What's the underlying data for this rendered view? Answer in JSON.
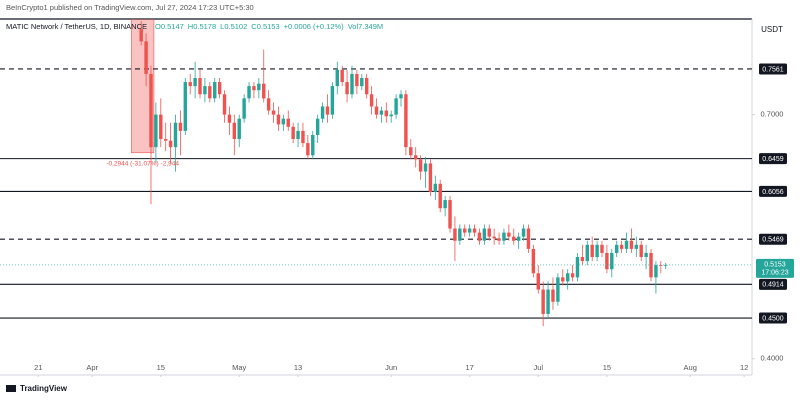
{
  "header": {
    "published": "BeInCrypto1 published on TradingView.com, Jul 27, 2024 17:23 UTC+5:30",
    "symbol": "MATIC Network / TetherUS, 1D, BINANCE",
    "ohlc": [
      "O0.5147",
      "H0.5178",
      "L0.5102",
      "C0.5153",
      "+0.0006 (+0.12%)",
      "Vol7.349M"
    ]
  },
  "footer": {
    "brand": "TradingView"
  },
  "chart_data": {
    "type": "candlestick",
    "currency": "USDT",
    "up_color": "#26a69a",
    "down_color": "#ef5350",
    "grid": false,
    "xlim": [
      73.2,
      226.6
    ],
    "ylim": [
      0.38,
      0.8175
    ],
    "xticks": [
      {
        "value": 81,
        "label": "21"
      },
      {
        "value": 92,
        "label": "Apr"
      },
      {
        "value": 106,
        "label": "15"
      },
      {
        "value": 122,
        "label": "May"
      },
      {
        "value": 134,
        "label": "13"
      },
      {
        "value": 153,
        "label": "Jun"
      },
      {
        "value": 169,
        "label": "17"
      },
      {
        "value": 183,
        "label": "Jul"
      },
      {
        "value": 197,
        "label": "15"
      },
      {
        "value": 214,
        "label": "Aug"
      },
      {
        "value": 225,
        "label": "12"
      }
    ],
    "yticks": [
      {
        "value": 0.7,
        "label": "0.7000"
      },
      {
        "value": 0.4,
        "label": "0.4000"
      }
    ],
    "x": [
      102,
      103,
      104,
      105,
      106,
      107,
      108,
      109,
      110,
      111,
      112,
      113,
      114,
      115,
      116,
      117,
      118,
      119,
      120,
      121,
      122,
      123,
      124,
      125,
      126,
      127,
      128,
      129,
      130,
      131,
      132,
      133,
      134,
      135,
      136,
      137,
      138,
      139,
      140,
      141,
      142,
      143,
      144,
      145,
      146,
      147,
      148,
      149,
      150,
      151,
      152,
      153,
      154,
      155,
      156,
      157,
      158,
      159,
      160,
      161,
      162,
      163,
      164,
      165,
      166,
      167,
      168,
      169,
      170,
      171,
      172,
      173,
      174,
      175,
      176,
      177,
      178,
      179,
      180,
      181,
      182,
      183,
      184,
      185,
      186,
      187,
      188,
      189,
      190,
      191,
      192,
      193,
      194,
      195,
      196,
      197,
      198,
      199,
      200,
      201,
      202,
      203,
      204,
      205,
      206,
      207,
      208,
      209
    ],
    "open": [
      0.805,
      0.79,
      0.75,
      0.66,
      0.7,
      0.67,
      0.668,
      0.66,
      0.69,
      0.68,
      0.74,
      0.735,
      0.745,
      0.725,
      0.735,
      0.72,
      0.74,
      0.725,
      0.7,
      0.69,
      0.67,
      0.695,
      0.72,
      0.735,
      0.73,
      0.738,
      0.72,
      0.705,
      0.7,
      0.688,
      0.695,
      0.685,
      0.67,
      0.68,
      0.665,
      0.65,
      0.675,
      0.695,
      0.71,
      0.7,
      0.735,
      0.755,
      0.74,
      0.725,
      0.75,
      0.735,
      0.745,
      0.725,
      0.71,
      0.7,
      0.705,
      0.698,
      0.7,
      0.72,
      0.725,
      0.66,
      0.65,
      0.645,
      0.63,
      0.64,
      0.605,
      0.615,
      0.585,
      0.595,
      0.56,
      0.545,
      0.56,
      0.555,
      0.56,
      0.555,
      0.545,
      0.56,
      0.55,
      0.548,
      0.545,
      0.555,
      0.55,
      0.545,
      0.55,
      0.56,
      0.535,
      0.505,
      0.485,
      0.455,
      0.485,
      0.47,
      0.5,
      0.495,
      0.505,
      0.5,
      0.525,
      0.52,
      0.54,
      0.525,
      0.54,
      0.53,
      0.51,
      0.53,
      0.54,
      0.535,
      0.545,
      0.535,
      0.54,
      0.525,
      0.53,
      0.5,
      0.515,
      0.5147
    ],
    "high": [
      0.815,
      0.8,
      0.76,
      0.715,
      0.72,
      0.69,
      0.69,
      0.7,
      0.705,
      0.745,
      0.75,
      0.765,
      0.755,
      0.745,
      0.74,
      0.745,
      0.745,
      0.73,
      0.71,
      0.7,
      0.7,
      0.725,
      0.74,
      0.74,
      0.745,
      0.78,
      0.73,
      0.715,
      0.71,
      0.7,
      0.705,
      0.69,
      0.69,
      0.69,
      0.675,
      0.68,
      0.7,
      0.715,
      0.725,
      0.74,
      0.765,
      0.76,
      0.755,
      0.76,
      0.755,
      0.75,
      0.75,
      0.735,
      0.72,
      0.71,
      0.715,
      0.705,
      0.725,
      0.73,
      0.73,
      0.67,
      0.66,
      0.65,
      0.648,
      0.645,
      0.625,
      0.62,
      0.6,
      0.6,
      0.575,
      0.565,
      0.565,
      0.565,
      0.565,
      0.56,
      0.565,
      0.565,
      0.56,
      0.555,
      0.56,
      0.565,
      0.56,
      0.555,
      0.565,
      0.565,
      0.54,
      0.515,
      0.495,
      0.495,
      0.5,
      0.505,
      0.51,
      0.51,
      0.515,
      0.53,
      0.54,
      0.545,
      0.55,
      0.545,
      0.545,
      0.54,
      0.535,
      0.545,
      0.545,
      0.555,
      0.56,
      0.55,
      0.545,
      0.54,
      0.535,
      0.52,
      0.52,
      0.5178
    ],
    "low": [
      0.785,
      0.735,
      0.59,
      0.64,
      0.66,
      0.655,
      0.64,
      0.63,
      0.65,
      0.675,
      0.725,
      0.72,
      0.72,
      0.715,
      0.715,
      0.715,
      0.72,
      0.69,
      0.675,
      0.65,
      0.66,
      0.69,
      0.715,
      0.72,
      0.72,
      0.715,
      0.7,
      0.69,
      0.68,
      0.68,
      0.68,
      0.665,
      0.66,
      0.66,
      0.645,
      0.645,
      0.665,
      0.69,
      0.69,
      0.695,
      0.725,
      0.735,
      0.715,
      0.72,
      0.725,
      0.73,
      0.72,
      0.7,
      0.695,
      0.69,
      0.69,
      0.69,
      0.695,
      0.71,
      0.65,
      0.645,
      0.635,
      0.62,
      0.61,
      0.6,
      0.595,
      0.58,
      0.575,
      0.555,
      0.52,
      0.54,
      0.55,
      0.55,
      0.55,
      0.54,
      0.54,
      0.545,
      0.54,
      0.54,
      0.54,
      0.545,
      0.54,
      0.535,
      0.545,
      0.53,
      0.5,
      0.48,
      0.44,
      0.45,
      0.46,
      0.465,
      0.49,
      0.485,
      0.495,
      0.495,
      0.515,
      0.515,
      0.52,
      0.52,
      0.525,
      0.505,
      0.5,
      0.525,
      0.53,
      0.53,
      0.53,
      0.525,
      0.52,
      0.51,
      0.495,
      0.48,
      0.505,
      0.5102
    ],
    "close": [
      0.79,
      0.75,
      0.66,
      0.7,
      0.67,
      0.668,
      0.66,
      0.69,
      0.68,
      0.74,
      0.735,
      0.745,
      0.725,
      0.735,
      0.72,
      0.74,
      0.725,
      0.7,
      0.69,
      0.67,
      0.695,
      0.72,
      0.735,
      0.73,
      0.738,
      0.72,
      0.705,
      0.7,
      0.688,
      0.695,
      0.685,
      0.67,
      0.68,
      0.665,
      0.65,
      0.675,
      0.695,
      0.71,
      0.7,
      0.735,
      0.755,
      0.74,
      0.725,
      0.75,
      0.735,
      0.745,
      0.725,
      0.71,
      0.7,
      0.705,
      0.698,
      0.7,
      0.72,
      0.725,
      0.66,
      0.65,
      0.645,
      0.63,
      0.64,
      0.605,
      0.615,
      0.585,
      0.595,
      0.56,
      0.545,
      0.56,
      0.555,
      0.56,
      0.555,
      0.545,
      0.56,
      0.55,
      0.548,
      0.545,
      0.555,
      0.55,
      0.545,
      0.55,
      0.56,
      0.535,
      0.505,
      0.485,
      0.455,
      0.485,
      0.47,
      0.5,
      0.495,
      0.505,
      0.5,
      0.525,
      0.52,
      0.54,
      0.525,
      0.54,
      0.53,
      0.51,
      0.53,
      0.54,
      0.535,
      0.545,
      0.535,
      0.54,
      0.525,
      0.53,
      0.5,
      0.515,
      0.5147,
      0.5153
    ],
    "levels": [
      {
        "value": 0.7561,
        "label": "0.7561",
        "style": "dashed"
      },
      {
        "value": 0.6459,
        "label": "0.6459",
        "style": "solid"
      },
      {
        "value": 0.6056,
        "label": "0.6056",
        "style": "solid"
      },
      {
        "value": 0.5469,
        "label": "0.5469",
        "style": "dashed"
      },
      {
        "value": 0.4914,
        "label": "0.4914",
        "style": "solid"
      },
      {
        "value": 0.45,
        "label": "0.4500",
        "style": "solid"
      }
    ],
    "last_price": {
      "value": 0.5153,
      "label": "0.5153",
      "countdown": "17:06:23"
    },
    "measure": {
      "x": [
        100,
        104.6
      ],
      "price": [
        0.9475,
        0.6531
      ],
      "label": "-0.2944 (-31.07%) -2,944"
    }
  }
}
